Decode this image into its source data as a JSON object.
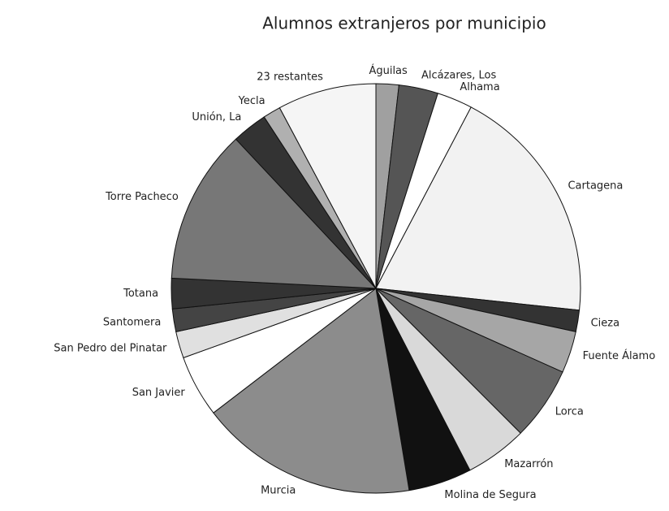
{
  "chart_data": {
    "type": "pie",
    "title": "Alumnos extranjeros por municipio",
    "categories": [
      "Águilas",
      "Alcázares, Los",
      "Alhama",
      "Cartagena",
      "Cieza",
      "Fuente Álamo",
      "Lorca",
      "Mazarrón",
      "Molina de Segura",
      "Murcia",
      "San Javier",
      "San Pedro del Pinatar",
      "Santomera",
      "Totana",
      "Torre Pacheco",
      "Unión, La",
      "Yecla",
      "23 restantes"
    ],
    "values": [
      1.8,
      3.1,
      2.8,
      19,
      1.7,
      3.3,
      5.8,
      4.9,
      5,
      17.2,
      4.9,
      2.1,
      1.8,
      2.4,
      12.2,
      2.8,
      1.4,
      7.8
    ],
    "colors": [
      "#a0a0a0",
      "#555555",
      "#ffffff",
      "#f2f2f2",
      "#333333",
      "#a6a6a6",
      "#666666",
      "#d9d9d9",
      "#111111",
      "#8c8c8c",
      "#ffffff",
      "#e0e0e0",
      "#444444",
      "#333333",
      "#777777",
      "#333333",
      "#b0b0b0",
      "#f5f5f5"
    ]
  }
}
